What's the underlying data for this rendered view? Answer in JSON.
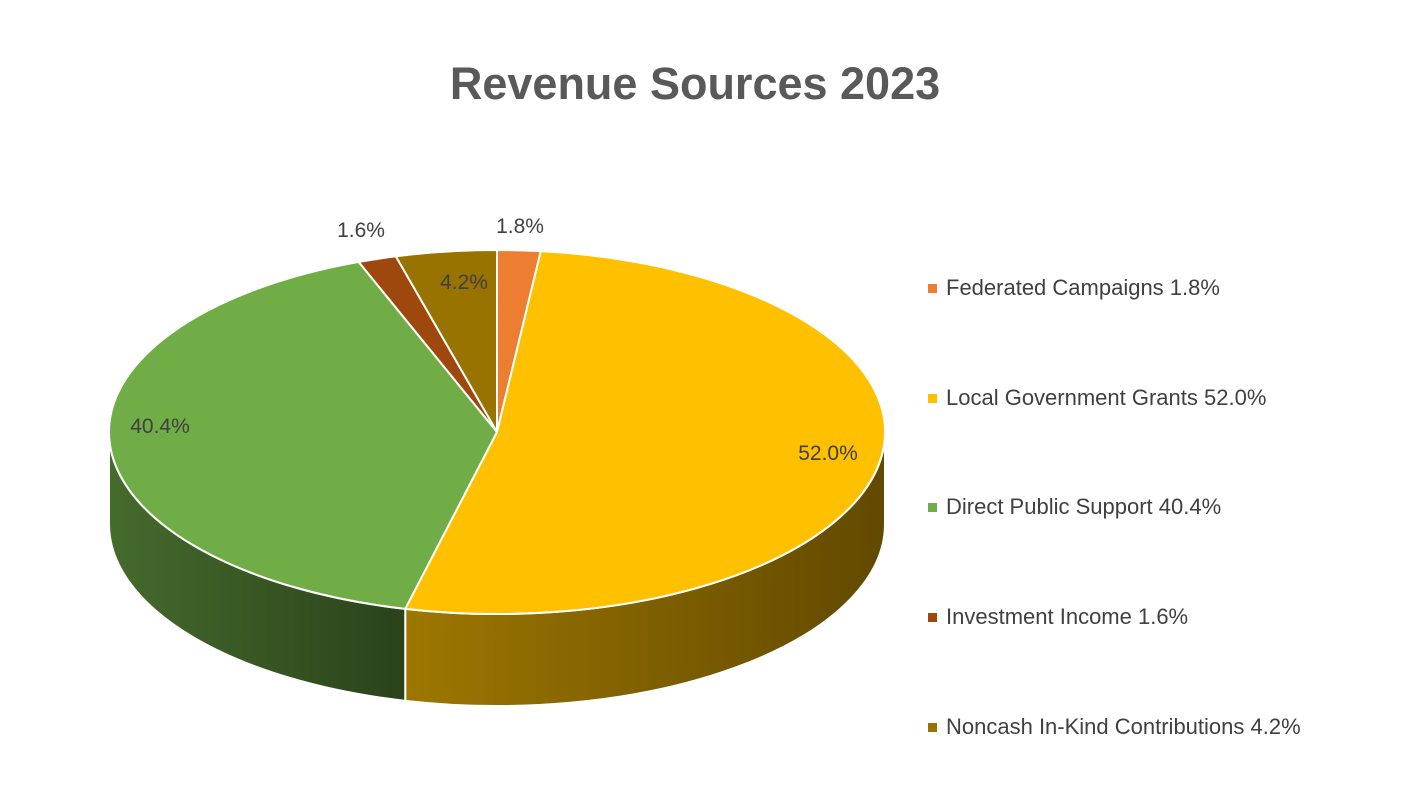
{
  "chart_data": {
    "type": "pie",
    "title": "Revenue Sources 2023",
    "categories": [
      "Federated Campaigns",
      "Local Government Grants",
      "Direct Public Support",
      "Investment Income",
      "Noncash In-Kind Contributions"
    ],
    "values": [
      1.8,
      52.0,
      40.4,
      1.6,
      4.2
    ],
    "data_labels": [
      "1.8%",
      "52.0%",
      "40.4%",
      "1.6%",
      "4.2%"
    ],
    "legend_entries": [
      "Federated Campaigns 1.8%",
      "Local Government Grants 52.0%",
      "Direct Public Support 40.4%",
      "Investment Income 1.6%",
      "Noncash In-Kind Contributions 4.2%"
    ],
    "colors": [
      "#ED7D31",
      "#FFC000",
      "#70AD47",
      "#9E480E",
      "#997300"
    ],
    "legend_position": "right",
    "style": "3d-pie"
  }
}
